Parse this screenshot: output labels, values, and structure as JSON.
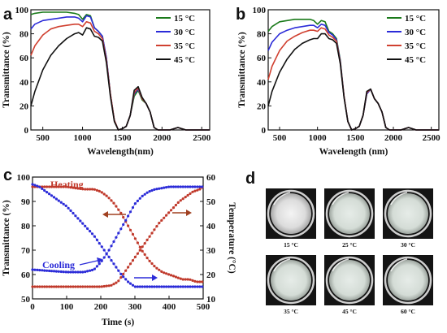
{
  "chart_data": [
    {
      "panel": "a",
      "type": "line",
      "xlabel": "Wavelength(nm)",
      "ylabel": "Transmittance (%)",
      "xlim": [
        350,
        2600
      ],
      "ylim": [
        0,
        100
      ],
      "xticks": [
        500,
        1000,
        1500,
        2000,
        2500
      ],
      "yticks": [
        0,
        20,
        40,
        60,
        80,
        100
      ],
      "legend_position": "top-right",
      "series": [
        {
          "name": "15 °C",
          "color": "#1a7a1a",
          "x": [
            350,
            400,
            500,
            600,
            700,
            800,
            900,
            950,
            1000,
            1050,
            1100,
            1150,
            1200,
            1250,
            1300,
            1350,
            1400,
            1450,
            1500,
            1550,
            1600,
            1650,
            1700,
            1750,
            1800,
            1850,
            1900,
            1950,
            2000,
            2050,
            2100,
            2150,
            2200,
            2250,
            2300,
            2400,
            2500,
            2600
          ],
          "y": [
            96,
            97,
            98,
            98,
            98,
            98,
            97,
            96,
            92,
            96,
            95,
            85,
            82,
            78,
            60,
            30,
            8,
            0,
            1,
            3,
            12,
            28,
            33,
            25,
            22,
            15,
            2,
            0,
            0,
            0,
            0,
            1,
            2,
            1,
            0,
            0,
            0,
            0
          ]
        },
        {
          "name": "30 °C",
          "color": "#2b2bd8",
          "x": [
            350,
            400,
            500,
            600,
            700,
            800,
            900,
            950,
            1000,
            1050,
            1100,
            1150,
            1200,
            1250,
            1300,
            1350,
            1400,
            1450,
            1500,
            1550,
            1600,
            1650,
            1700,
            1750,
            1800,
            1850,
            1900,
            1950,
            2000,
            2050,
            2100,
            2150,
            2200,
            2250,
            2300,
            2400,
            2500,
            2600
          ],
          "y": [
            84,
            88,
            91,
            92,
            93,
            94,
            94,
            93,
            90,
            95,
            94,
            85,
            82,
            78,
            60,
            30,
            8,
            0,
            1,
            3,
            12,
            30,
            34,
            26,
            22,
            15,
            2,
            0,
            0,
            0,
            0,
            1,
            2,
            1,
            0,
            0,
            0,
            0
          ]
        },
        {
          "name": "35 °C",
          "color": "#d04030",
          "x": [
            350,
            400,
            500,
            600,
            700,
            800,
            900,
            950,
            1000,
            1050,
            1100,
            1150,
            1200,
            1250,
            1300,
            1350,
            1400,
            1450,
            1500,
            1550,
            1600,
            1650,
            1700,
            1750,
            1800,
            1850,
            1900,
            1950,
            2000,
            2050,
            2100,
            2150,
            2200,
            2250,
            2300,
            2400,
            2500,
            2600
          ],
          "y": [
            62,
            70,
            79,
            84,
            86,
            87,
            88,
            88,
            86,
            90,
            89,
            82,
            80,
            76,
            58,
            30,
            8,
            0,
            1,
            3,
            12,
            31,
            35,
            26,
            22,
            15,
            2,
            0,
            0,
            0,
            0,
            1,
            2,
            1,
            0,
            0,
            0,
            0
          ]
        },
        {
          "name": "45 °C",
          "color": "#111111",
          "x": [
            350,
            400,
            500,
            600,
            700,
            800,
            900,
            950,
            1000,
            1050,
            1100,
            1150,
            1200,
            1250,
            1300,
            1350,
            1400,
            1450,
            1500,
            1550,
            1600,
            1650,
            1700,
            1750,
            1800,
            1850,
            1900,
            1950,
            2000,
            2050,
            2100,
            2150,
            2200,
            2250,
            2300,
            2400,
            2500,
            2600
          ],
          "y": [
            20,
            32,
            50,
            62,
            70,
            76,
            80,
            81,
            79,
            85,
            84,
            78,
            77,
            74,
            56,
            28,
            7,
            0,
            1,
            3,
            12,
            33,
            36,
            27,
            22,
            15,
            2,
            0,
            0,
            0,
            0,
            1,
            2,
            1,
            0,
            0,
            0,
            0
          ]
        }
      ]
    },
    {
      "panel": "b",
      "type": "line",
      "xlabel": "Wavelength (nm)",
      "ylabel": "Transmittance (%)",
      "xlim": [
        350,
        2600
      ],
      "ylim": [
        0,
        100
      ],
      "xticks": [
        500,
        1000,
        1500,
        2000,
        2500
      ],
      "yticks": [
        0,
        20,
        40,
        60,
        80,
        100
      ],
      "legend_position": "top-right",
      "series": [
        {
          "name": "15 °C",
          "color": "#1a7a1a",
          "x": [
            350,
            400,
            500,
            600,
            700,
            800,
            900,
            950,
            1000,
            1050,
            1100,
            1150,
            1200,
            1250,
            1300,
            1350,
            1400,
            1450,
            1500,
            1550,
            1600,
            1650,
            1700,
            1750,
            1800,
            1850,
            1900,
            1950,
            2000,
            2050,
            2100,
            2150,
            2200,
            2250,
            2300,
            2400,
            2500,
            2600
          ],
          "y": [
            82,
            86,
            90,
            91,
            92,
            92,
            92,
            91,
            88,
            91,
            90,
            82,
            80,
            76,
            58,
            28,
            7,
            0,
            1,
            3,
            12,
            30,
            34,
            26,
            22,
            15,
            2,
            0,
            0,
            0,
            0,
            1,
            2,
            1,
            0,
            0,
            0,
            0
          ]
        },
        {
          "name": "30 °C",
          "color": "#2b2bd8",
          "x": [
            350,
            400,
            500,
            600,
            700,
            800,
            900,
            950,
            1000,
            1050,
            1100,
            1150,
            1200,
            1250,
            1300,
            1350,
            1400,
            1450,
            1500,
            1550,
            1600,
            1650,
            1700,
            1750,
            1800,
            1850,
            1900,
            1950,
            2000,
            2050,
            2100,
            2150,
            2200,
            2250,
            2300,
            2400,
            2500,
            2600
          ],
          "y": [
            66,
            73,
            80,
            83,
            85,
            86,
            87,
            87,
            85,
            88,
            87,
            81,
            79,
            75,
            57,
            28,
            7,
            0,
            1,
            3,
            12,
            30,
            34,
            26,
            22,
            15,
            2,
            0,
            0,
            0,
            0,
            1,
            2,
            1,
            0,
            0,
            0,
            0
          ]
        },
        {
          "name": "35 °C",
          "color": "#d04030",
          "x": [
            350,
            400,
            500,
            600,
            700,
            800,
            900,
            950,
            1000,
            1050,
            1100,
            1150,
            1200,
            1250,
            1300,
            1350,
            1400,
            1450,
            1500,
            1550,
            1600,
            1650,
            1700,
            1750,
            1800,
            1850,
            1900,
            1950,
            2000,
            2050,
            2100,
            2150,
            2200,
            2250,
            2300,
            2400,
            2500,
            2600
          ],
          "y": [
            42,
            53,
            66,
            74,
            78,
            81,
            83,
            83,
            82,
            85,
            84,
            79,
            77,
            74,
            56,
            28,
            7,
            0,
            1,
            3,
            12,
            31,
            34,
            26,
            22,
            15,
            2,
            0,
            0,
            0,
            0,
            1,
            2,
            1,
            0,
            0,
            0,
            0
          ]
        },
        {
          "name": "45 °C",
          "color": "#111111",
          "x": [
            350,
            400,
            500,
            600,
            700,
            800,
            900,
            950,
            1000,
            1050,
            1100,
            1150,
            1200,
            1250,
            1300,
            1350,
            1400,
            1450,
            1500,
            1550,
            1600,
            1650,
            1700,
            1750,
            1800,
            1850,
            1900,
            1950,
            2000,
            2050,
            2100,
            2150,
            2200,
            2250,
            2300,
            2400,
            2500,
            2600
          ],
          "y": [
            20,
            32,
            48,
            59,
            67,
            72,
            75,
            76,
            76,
            80,
            80,
            76,
            75,
            72,
            55,
            27,
            7,
            0,
            1,
            3,
            12,
            32,
            34,
            26,
            22,
            15,
            2,
            0,
            0,
            0,
            0,
            1,
            2,
            1,
            0,
            0,
            0,
            0
          ]
        }
      ]
    },
    {
      "panel": "c",
      "type": "scatter",
      "xlabel": "Time (s)",
      "ylabel_left": "Transmittance (%)",
      "ylabel_right": "Temperature (°C)",
      "xlim": [
        0,
        500
      ],
      "ylim_left": [
        50,
        100
      ],
      "ylim_right": [
        10,
        60
      ],
      "xticks": [
        0,
        100,
        200,
        300,
        400,
        500
      ],
      "yticks_left": [
        50,
        60,
        70,
        80,
        90,
        100
      ],
      "yticks_right": [
        10,
        20,
        30,
        40,
        50,
        60
      ],
      "annotations": [
        {
          "text": "Heating",
          "color": "#c0392b"
        },
        {
          "text": "Cooling",
          "color": "#2b2bd8"
        }
      ],
      "series": [
        {
          "name": "Heating transmittance",
          "axis": "left",
          "color": "#c0392b",
          "x": [
            0,
            50,
            100,
            150,
            180,
            200,
            220,
            240,
            260,
            280,
            300,
            320,
            340,
            360,
            380,
            400,
            420,
            440,
            460,
            480,
            500
          ],
          "y": [
            96,
            96,
            96,
            95,
            95,
            94,
            92,
            89,
            85,
            80,
            75,
            70,
            66,
            63,
            61,
            60,
            59,
            58,
            58,
            57,
            57
          ]
        },
        {
          "name": "Heating temperature",
          "axis": "right",
          "color": "#c0392b",
          "x": [
            0,
            50,
            100,
            150,
            200,
            230,
            250,
            270,
            290,
            310,
            330,
            350,
            370,
            390,
            410,
            430,
            450,
            470,
            490,
            500
          ],
          "y": [
            15,
            15,
            15,
            15,
            15,
            15.5,
            17,
            21,
            25,
            29,
            33,
            37,
            41,
            44,
            47,
            50,
            52,
            54,
            55,
            56
          ]
        },
        {
          "name": "Cooling transmittance",
          "axis": "left",
          "color": "#2b2bd8",
          "x": [
            0,
            20,
            40,
            60,
            80,
            100,
            120,
            140,
            160,
            180,
            200,
            220,
            240,
            260,
            280,
            300,
            320,
            340,
            360,
            400,
            450,
            500
          ],
          "y": [
            97,
            96,
            94,
            92,
            90,
            88,
            85,
            82,
            79,
            76,
            72,
            68,
            64,
            60,
            57,
            55,
            55,
            55,
            55,
            55,
            55,
            55
          ]
        },
        {
          "name": "Cooling temperature",
          "axis": "right",
          "color": "#2b2bd8",
          "x": [
            0,
            50,
            100,
            150,
            180,
            200,
            220,
            240,
            260,
            280,
            300,
            320,
            340,
            360,
            380,
            400,
            450,
            500
          ],
          "y": [
            22,
            21.5,
            21,
            21,
            22,
            25,
            29,
            34,
            39,
            44,
            49,
            52,
            54,
            55,
            55.5,
            56,
            56,
            56
          ]
        }
      ]
    }
  ],
  "panels": {
    "a": {
      "letter": "a",
      "xlabel": "Wavelength(nm)",
      "ylabel": "Transmittance (%)",
      "x_tick_labels": [
        "500",
        "1000",
        "1500",
        "2000",
        "2500"
      ],
      "y_tick_labels": [
        "0",
        "20",
        "40",
        "60",
        "80",
        "100"
      ],
      "legend": [
        "15 °C",
        "30 °C",
        "35 °C",
        "45 °C"
      ]
    },
    "b": {
      "letter": "b",
      "xlabel": "Wavelength (nm)",
      "ylabel": "Transmittance (%)",
      "x_tick_labels": [
        "500",
        "1000",
        "1500",
        "2000",
        "2500"
      ],
      "y_tick_labels": [
        "0",
        "20",
        "40",
        "60",
        "80",
        "100"
      ],
      "legend": [
        "15 °C",
        "30 °C",
        "35 °C",
        "45 °C"
      ]
    },
    "c": {
      "letter": "c",
      "xlabel": "Time (s)",
      "ylabel_left": "Transmittance (%)",
      "ylabel_right": "Temperature (°C)",
      "x_tick_labels": [
        "0",
        "100",
        "200",
        "300",
        "400",
        "500"
      ],
      "y_left_tick_labels": [
        "50",
        "60",
        "70",
        "80",
        "90",
        "100"
      ],
      "y_right_tick_labels": [
        "10",
        "20",
        "30",
        "40",
        "50",
        "60"
      ],
      "heating_label": "Heating",
      "cooling_label": "Cooling"
    },
    "d": {
      "letter": "d",
      "photo_labels": [
        "15 °C",
        "25 °C",
        "30 °C",
        "35 °C",
        "45 °C",
        "60 °C"
      ]
    }
  },
  "colors": {
    "green": "#1a7a1a",
    "blue": "#2b2bd8",
    "red": "#d04030",
    "black": "#111111",
    "heating": "#c0392b",
    "cooling": "#2b2bd8"
  }
}
